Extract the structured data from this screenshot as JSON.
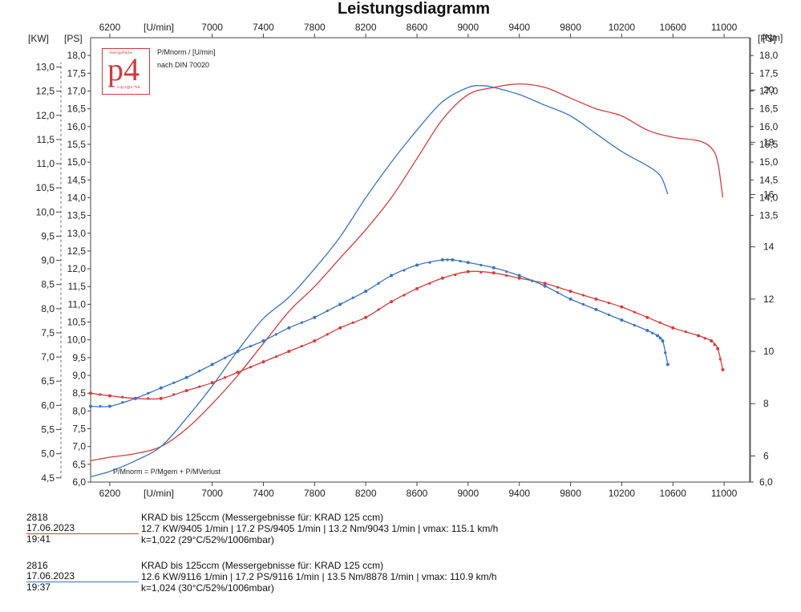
{
  "title": "Leistungsdiagramm",
  "colors": {
    "red": "#d93b3b",
    "blue": "#3c74be",
    "axis": "#444444",
    "grid": "#cccccc"
  },
  "axes": {
    "x_unit_top": "[U/min]",
    "x_unit_bottom": "[U/min]",
    "kw_unit": "[KW]",
    "ps_unit_left": "[PS]",
    "ps_unit_right": "[PS]",
    "nm_unit": "[Nm]",
    "x_ticks": [
      "6200",
      "7000",
      "7400",
      "7800",
      "8200",
      "8600",
      "9000",
      "9400",
      "9800",
      "10200",
      "10600",
      "11000"
    ],
    "x_ticks_bottom": [
      "6200",
      "7000",
      "7400",
      "7800",
      "8200",
      "8600",
      "9000",
      "9400",
      "9800",
      "10200",
      "10600",
      "11000"
    ],
    "kw_ticks": [
      "4,5",
      "5,0",
      "5,5",
      "6,0",
      "6,5",
      "7,0",
      "7,5",
      "8,0",
      "8,5",
      "9,0",
      "9,5",
      "10,0",
      "10,5",
      "11,0",
      "11,5",
      "12,0",
      "12,5",
      "13,0"
    ],
    "ps_ticks": [
      "6,0",
      "6,5",
      "7,0",
      "7,5",
      "8,0",
      "8,5",
      "9,0",
      "9,5",
      "10,0",
      "10,5",
      "11,0",
      "11,5",
      "12,0",
      "12,5",
      "13,0",
      "13,5",
      "14,0",
      "14,5",
      "15,0",
      "15,5",
      "16,0",
      "16,5",
      "17,0",
      "17,5",
      "18,0"
    ],
    "ps_ticks_right": [
      "6,0",
      "13,5",
      "14,0",
      "14,5",
      "15,0",
      "15,5",
      "16,0",
      "16,5",
      "17,0",
      "17,5",
      "18,0"
    ],
    "nm_ticks": [
      "6",
      "8",
      "10",
      "12",
      "14",
      "16",
      "18",
      "20"
    ]
  },
  "logo": {
    "main": "p4",
    "top_text": "Anzeigefläche",
    "bottom_text": "copyright *tds"
  },
  "notes": {
    "top_left_1": "P/Mnorm / [U/min]",
    "top_left_2": "nach DIN 70020",
    "formula": "P/Mnorm = P/Mgem + P/MVerlust"
  },
  "legend": [
    {
      "id": "2818",
      "date": "17.06.2023  19:41",
      "color": "#d93b3b",
      "line1": "KRAD bis   125ccm (Messergebnisse für: KRAD 125 ccm)",
      "line2": "12.7 KW/9405 1/min  |  17.2 PS/9405 1/min  |  13.2 Nm/9043 1/min | vmax: 115.1 km/h",
      "line3": "k=1,022 (29°C/52%/1006mbar)"
    },
    {
      "id": "2816",
      "date": "17.06.2023  19:37",
      "color": "#3c74be",
      "line1": "KRAD bis   125ccm (Messergebnisse für: KRAD 125 ccm)",
      "line2": "12.6 KW/9116 1/min  |  17.2 PS/9116 1/min  |  13.5 Nm/8878 1/min | vmax: 110.9 km/h",
      "line3": "k=1,024 (30°C/52%/1006mbar)"
    }
  ],
  "chart_data": {
    "type": "line",
    "title": "Leistungsdiagramm",
    "xlabel": "[U/min]",
    "ylabel": "[PS]",
    "y2label": "[Nm]",
    "xlim": [
      6050,
      11200
    ],
    "ylim_ps": [
      6.0,
      18.5
    ],
    "ylim_nm": [
      5,
      22
    ],
    "series": [
      {
        "name": "2818",
        "kind": "power",
        "color": "#d93b3b",
        "x": [
          6050,
          6200,
          6400,
          6600,
          6800,
          7000,
          7200,
          7400,
          7600,
          7800,
          8000,
          8200,
          8400,
          8600,
          8800,
          9000,
          9200,
          9400,
          9600,
          9800,
          10000,
          10200,
          10400,
          10600,
          10800,
          10900,
          10950,
          10990
        ],
        "y": [
          6.6,
          6.7,
          6.8,
          7.0,
          7.5,
          8.2,
          9.0,
          9.9,
          10.8,
          11.5,
          12.3,
          13.1,
          14.0,
          15.1,
          16.2,
          16.9,
          17.1,
          17.2,
          17.1,
          16.8,
          16.5,
          16.3,
          15.9,
          15.7,
          15.6,
          15.4,
          15.0,
          14.0
        ]
      },
      {
        "name": "2816",
        "kind": "power",
        "color": "#3c74be",
        "x": [
          6050,
          6200,
          6400,
          6600,
          6800,
          7000,
          7200,
          7400,
          7600,
          7800,
          8000,
          8200,
          8400,
          8600,
          8800,
          9000,
          9116,
          9200,
          9400,
          9600,
          9800,
          10000,
          10200,
          10400,
          10480,
          10520,
          10560
        ],
        "y": [
          6.15,
          6.3,
          6.6,
          7.0,
          7.8,
          8.7,
          9.7,
          10.6,
          11.2,
          12.0,
          12.9,
          14.0,
          15.0,
          15.9,
          16.7,
          17.1,
          17.15,
          17.1,
          16.9,
          16.6,
          16.3,
          15.8,
          15.3,
          14.9,
          14.7,
          14.5,
          14.1
        ]
      },
      {
        "name": "2818",
        "kind": "torque",
        "color": "#d93b3b",
        "x": [
          6050,
          6200,
          6400,
          6600,
          6800,
          7000,
          7200,
          7400,
          7600,
          7800,
          8000,
          8200,
          8400,
          8600,
          8800,
          9000,
          9200,
          9400,
          9600,
          9800,
          10000,
          10200,
          10400,
          10600,
          10800,
          10900,
          10950,
          10990
        ],
        "y": [
          8.4,
          8.3,
          8.2,
          8.2,
          8.5,
          8.8,
          9.2,
          9.6,
          10.0,
          10.4,
          10.9,
          11.3,
          11.9,
          12.4,
          12.8,
          13.05,
          13.0,
          12.8,
          12.6,
          12.3,
          12.0,
          11.7,
          11.3,
          10.9,
          10.6,
          10.4,
          10.1,
          9.3
        ]
      },
      {
        "name": "2816",
        "kind": "torque",
        "color": "#3c74be",
        "x": [
          6050,
          6200,
          6400,
          6600,
          6800,
          7000,
          7200,
          7400,
          7600,
          7800,
          8000,
          8200,
          8400,
          8600,
          8800,
          8878,
          9000,
          9200,
          9400,
          9600,
          9800,
          10000,
          10200,
          10400,
          10480,
          10520,
          10560
        ],
        "y": [
          7.9,
          7.9,
          8.2,
          8.6,
          9.0,
          9.5,
          10.0,
          10.4,
          10.9,
          11.3,
          11.8,
          12.3,
          12.9,
          13.3,
          13.5,
          13.5,
          13.4,
          13.2,
          12.9,
          12.5,
          12.0,
          11.6,
          11.2,
          10.8,
          10.6,
          10.4,
          9.5
        ]
      }
    ]
  }
}
